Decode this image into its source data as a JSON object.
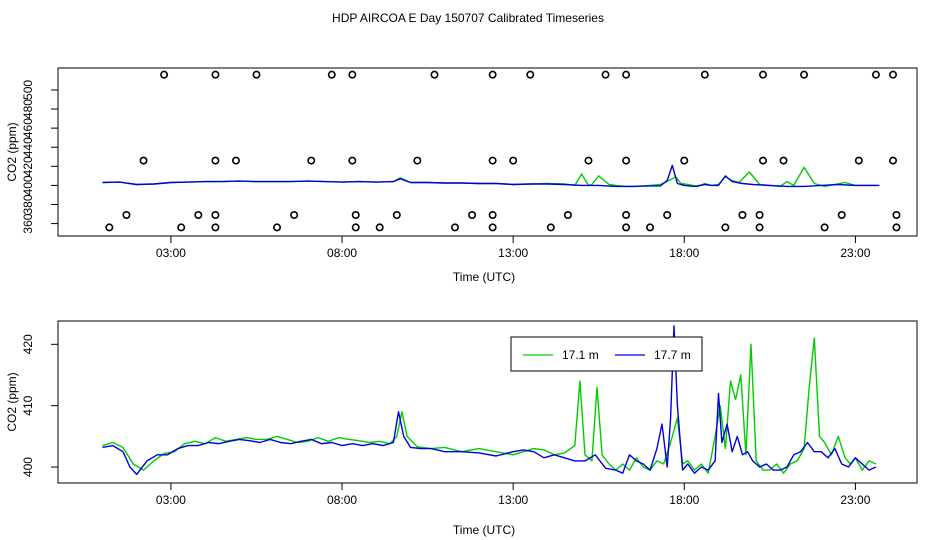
{
  "figure_title": "HDP AIRCOA E  Day 150707  Calibrated Timeseries",
  "colors": {
    "green": "#00cc00",
    "blue": "#0000dd",
    "axis": "#000000"
  },
  "chart_data": [
    {
      "type": "line",
      "title": "",
      "xlabel": "Time (UTC)",
      "ylabel": "CO2 (ppm)",
      "xlim": [
        -0.3,
        24.8
      ],
      "ylim": [
        347,
        523
      ],
      "xticks": [
        3,
        8,
        13,
        18,
        23
      ],
      "xtick_labels": [
        "03:00",
        "08:00",
        "13:00",
        "18:00",
        "23:00"
      ],
      "yticks": [
        360,
        380,
        400,
        420,
        440,
        460,
        480,
        500
      ],
      "ytick_labels": [
        "360",
        "380",
        "400",
        "420",
        "440",
        "460",
        "480",
        "500"
      ],
      "grid": false,
      "series": [
        {
          "name": "17.1 m",
          "color": "#00cc00",
          "x": [
            1.0,
            1.5,
            2.0,
            2.5,
            3.0,
            3.5,
            4.0,
            4.5,
            5.0,
            5.5,
            6.0,
            6.5,
            7.0,
            7.5,
            8.0,
            8.5,
            9.0,
            9.5,
            9.7,
            10.0,
            10.5,
            11.0,
            11.5,
            12.0,
            12.5,
            13.0,
            13.5,
            14.0,
            14.5,
            14.8,
            14.9,
            15.0,
            15.2,
            15.3,
            15.5,
            15.8,
            16.0,
            16.3,
            16.6,
            17.0,
            17.3,
            17.6,
            17.75,
            17.9,
            18.1,
            18.4,
            18.6,
            18.8,
            19.0,
            19.2,
            19.4,
            19.6,
            19.9,
            20.2,
            20.5,
            20.8,
            21.0,
            21.2,
            21.5,
            21.8,
            22.1,
            22.4,
            22.7,
            23.0,
            23.3,
            23.6
          ],
          "values": [
            403,
            403.5,
            401,
            401.5,
            403,
            403.5,
            404,
            404,
            404.5,
            404,
            404,
            404,
            404.5,
            404,
            403.5,
            404,
            403.5,
            404,
            408,
            403,
            403,
            402.5,
            402.5,
            402,
            402,
            401,
            401.5,
            402,
            401.5,
            400,
            406,
            412,
            400,
            401,
            410,
            401,
            400,
            399,
            399,
            400,
            401,
            406,
            409,
            402,
            401,
            399,
            402,
            400,
            401,
            409,
            405,
            403,
            414,
            401,
            400,
            399,
            404,
            400,
            419,
            402,
            399,
            401,
            403,
            400,
            400,
            400
          ]
        },
        {
          "name": "17.7 m",
          "color": "#0000dd",
          "x": [
            1.0,
            1.5,
            2.0,
            2.5,
            3.0,
            3.5,
            4.0,
            4.5,
            5.0,
            5.5,
            6.0,
            6.5,
            7.0,
            7.5,
            8.0,
            8.5,
            9.0,
            9.5,
            9.7,
            10.0,
            10.5,
            11.0,
            11.5,
            12.0,
            12.5,
            13.0,
            13.5,
            14.0,
            14.5,
            15.0,
            15.5,
            16.0,
            16.5,
            17.0,
            17.3,
            17.5,
            17.65,
            17.8,
            18.0,
            18.3,
            18.6,
            18.8,
            19.0,
            19.2,
            19.4,
            19.7,
            20.0,
            20.5,
            21.0,
            21.5,
            22.0,
            22.5,
            23.0,
            23.5,
            23.7
          ],
          "values": [
            403,
            403.5,
            401,
            401.5,
            403,
            403.5,
            404,
            404,
            404.5,
            404,
            404,
            404,
            404.5,
            404,
            403.5,
            404,
            403.5,
            404,
            407,
            403,
            403,
            402.5,
            402.5,
            402,
            402,
            401,
            401.5,
            401.5,
            401,
            400,
            400,
            399,
            399,
            399.5,
            399.5,
            405,
            421,
            402,
            400,
            399,
            401,
            400,
            400,
            410,
            404,
            402,
            401,
            400,
            399,
            399,
            400,
            401,
            400,
            400,
            400
          ]
        }
      ],
      "points": [
        {
          "x": 1.2,
          "y": 356
        },
        {
          "x": 1.7,
          "y": 369
        },
        {
          "x": 2.2,
          "y": 426
        },
        {
          "x": 2.8,
          "y": 516
        },
        {
          "x": 3.3,
          "y": 356
        },
        {
          "x": 3.8,
          "y": 369
        },
        {
          "x": 4.3,
          "y": 356
        },
        {
          "x": 4.3,
          "y": 369
        },
        {
          "x": 4.3,
          "y": 426
        },
        {
          "x": 4.3,
          "y": 516
        },
        {
          "x": 4.9,
          "y": 426
        },
        {
          "x": 5.5,
          "y": 516
        },
        {
          "x": 6.1,
          "y": 356
        },
        {
          "x": 6.6,
          "y": 369
        },
        {
          "x": 7.1,
          "y": 426
        },
        {
          "x": 7.7,
          "y": 516
        },
        {
          "x": 8.3,
          "y": 516
        },
        {
          "x": 8.3,
          "y": 426
        },
        {
          "x": 8.4,
          "y": 369
        },
        {
          "x": 8.4,
          "y": 356
        },
        {
          "x": 9.1,
          "y": 356
        },
        {
          "x": 9.6,
          "y": 369
        },
        {
          "x": 10.2,
          "y": 426
        },
        {
          "x": 10.7,
          "y": 516
        },
        {
          "x": 11.3,
          "y": 356
        },
        {
          "x": 11.8,
          "y": 369
        },
        {
          "x": 12.4,
          "y": 516
        },
        {
          "x": 12.4,
          "y": 426
        },
        {
          "x": 12.4,
          "y": 369
        },
        {
          "x": 12.4,
          "y": 356
        },
        {
          "x": 13.0,
          "y": 426
        },
        {
          "x": 13.5,
          "y": 516
        },
        {
          "x": 14.1,
          "y": 356
        },
        {
          "x": 14.6,
          "y": 369
        },
        {
          "x": 15.2,
          "y": 426
        },
        {
          "x": 15.7,
          "y": 516
        },
        {
          "x": 16.3,
          "y": 516
        },
        {
          "x": 16.3,
          "y": 426
        },
        {
          "x": 16.3,
          "y": 369
        },
        {
          "x": 16.3,
          "y": 356
        },
        {
          "x": 17.0,
          "y": 356
        },
        {
          "x": 17.5,
          "y": 369
        },
        {
          "x": 18.0,
          "y": 426
        },
        {
          "x": 18.6,
          "y": 516
        },
        {
          "x": 19.2,
          "y": 356
        },
        {
          "x": 19.7,
          "y": 369
        },
        {
          "x": 20.2,
          "y": 356
        },
        {
          "x": 20.2,
          "y": 369
        },
        {
          "x": 20.3,
          "y": 426
        },
        {
          "x": 20.3,
          "y": 516
        },
        {
          "x": 20.9,
          "y": 426
        },
        {
          "x": 21.5,
          "y": 516
        },
        {
          "x": 22.1,
          "y": 356
        },
        {
          "x": 22.6,
          "y": 369
        },
        {
          "x": 23.1,
          "y": 426
        },
        {
          "x": 23.6,
          "y": 516
        },
        {
          "x": 24.1,
          "y": 516
        },
        {
          "x": 24.1,
          "y": 426
        },
        {
          "x": 24.2,
          "y": 369
        },
        {
          "x": 24.2,
          "y": 356
        }
      ]
    },
    {
      "type": "line",
      "title": "",
      "xlabel": "Time (UTC)",
      "ylabel": "CO2 (ppm)",
      "xlim": [
        -0.3,
        24.8
      ],
      "ylim": [
        397.4,
        423.8
      ],
      "xticks": [
        3,
        8,
        13,
        18,
        23
      ],
      "xtick_labels": [
        "03:00",
        "08:00",
        "13:00",
        "18:00",
        "23:00"
      ],
      "yticks": [
        400,
        410,
        420
      ],
      "ytick_labels": [
        "400",
        "410",
        "420"
      ],
      "grid": false,
      "legend": {
        "position": "top-right",
        "entries": [
          "17.1 m",
          "17.7 m"
        ]
      },
      "series": [
        {
          "name": "17.1 m",
          "color": "#00cc00",
          "x": [
            1.0,
            1.3,
            1.6,
            1.9,
            2.2,
            2.5,
            2.8,
            3.1,
            3.4,
            3.7,
            4.0,
            4.3,
            4.6,
            4.9,
            5.2,
            5.5,
            5.8,
            6.1,
            6.4,
            6.7,
            7.0,
            7.3,
            7.6,
            7.9,
            8.2,
            8.5,
            8.8,
            9.1,
            9.4,
            9.6,
            9.75,
            9.9,
            10.2,
            10.6,
            11.0,
            11.5,
            12.0,
            12.5,
            13.0,
            13.3,
            13.6,
            13.9,
            14.2,
            14.5,
            14.8,
            14.95,
            15.1,
            15.3,
            15.45,
            15.6,
            15.8,
            16.0,
            16.2,
            16.4,
            16.6,
            16.8,
            17.0,
            17.2,
            17.4,
            17.6,
            17.8,
            17.95,
            18.1,
            18.3,
            18.5,
            18.7,
            18.9,
            19.05,
            19.2,
            19.35,
            19.5,
            19.65,
            19.8,
            19.95,
            20.1,
            20.3,
            20.5,
            20.7,
            20.9,
            21.1,
            21.3,
            21.5,
            21.65,
            21.8,
            21.95,
            22.1,
            22.3,
            22.5,
            22.7,
            22.85,
            23.0,
            23.2,
            23.4,
            23.6
          ],
          "values": [
            403.5,
            404,
            403.2,
            400.5,
            399.5,
            401,
            402.2,
            402.5,
            403.8,
            404.2,
            403.8,
            404.8,
            404.2,
            404.5,
            404.8,
            404.5,
            404.5,
            405,
            404.5,
            404,
            404.2,
            404.8,
            404.2,
            404.8,
            404.5,
            404.3,
            404,
            404.2,
            403.8,
            405,
            409,
            405,
            403.3,
            403,
            403.2,
            402.5,
            403,
            402.5,
            402,
            402.5,
            403,
            402.8,
            402,
            402.3,
            403.5,
            414,
            402,
            401,
            413,
            402,
            400.5,
            399.5,
            400.5,
            399.5,
            401.5,
            400,
            399.5,
            401,
            400.5,
            404,
            408,
            400.5,
            401,
            399.5,
            400.5,
            399,
            405,
            410,
            403,
            414,
            411,
            415,
            402,
            420,
            401,
            399.5,
            399.5,
            400.5,
            399,
            400.5,
            401,
            403,
            413,
            421,
            405,
            404,
            402,
            405,
            401.5,
            400.5,
            401.5,
            399.5,
            401,
            400.5
          ]
        },
        {
          "name": "17.7 m",
          "color": "#0000dd",
          "x": [
            1.0,
            1.3,
            1.6,
            1.8,
            2.0,
            2.3,
            2.6,
            2.9,
            3.2,
            3.5,
            3.8,
            4.1,
            4.4,
            4.7,
            5.0,
            5.3,
            5.6,
            5.9,
            6.2,
            6.5,
            6.8,
            7.1,
            7.4,
            7.7,
            8.0,
            8.3,
            8.6,
            8.9,
            9.2,
            9.5,
            9.65,
            9.8,
            10.0,
            10.3,
            10.6,
            11.0,
            11.5,
            12.0,
            12.5,
            13.0,
            13.3,
            13.6,
            13.9,
            14.2,
            14.5,
            14.8,
            15.1,
            15.4,
            15.7,
            16.0,
            16.2,
            16.4,
            16.6,
            16.8,
            17.0,
            17.2,
            17.35,
            17.5,
            17.6,
            17.7,
            17.8,
            17.95,
            18.1,
            18.3,
            18.5,
            18.7,
            18.9,
            19.0,
            19.1,
            19.25,
            19.4,
            19.55,
            19.7,
            19.85,
            20.0,
            20.2,
            20.4,
            20.6,
            20.8,
            21.0,
            21.2,
            21.4,
            21.6,
            21.8,
            22.0,
            22.2,
            22.4,
            22.6,
            22.8,
            23.0,
            23.2,
            23.4,
            23.6
          ],
          "values": [
            403.2,
            403.5,
            402.5,
            400,
            398.8,
            401,
            402,
            402,
            403,
            403.5,
            403.5,
            404,
            403.8,
            404.2,
            404.5,
            404.3,
            404,
            404.5,
            404,
            403.8,
            404.2,
            404.5,
            403.8,
            404,
            403.5,
            403.8,
            403.5,
            403.8,
            403.5,
            404,
            409,
            405,
            403.2,
            403,
            403,
            402.5,
            402.5,
            402.3,
            401.8,
            402.5,
            402.8,
            402.5,
            401.5,
            402,
            401.5,
            401,
            401,
            402,
            399.8,
            399.5,
            399,
            402,
            401,
            400.5,
            399.5,
            403,
            407,
            400,
            408,
            423,
            410,
            399.5,
            400.5,
            399,
            400,
            399.5,
            401,
            412,
            404,
            407,
            402.5,
            405,
            402,
            402.5,
            401,
            400,
            400.5,
            399.5,
            399.5,
            400,
            402,
            402.5,
            404,
            402.5,
            402.5,
            401.5,
            403,
            400.5,
            400,
            401.5,
            400.5,
            399.5,
            400
          ]
        }
      ]
    }
  ]
}
